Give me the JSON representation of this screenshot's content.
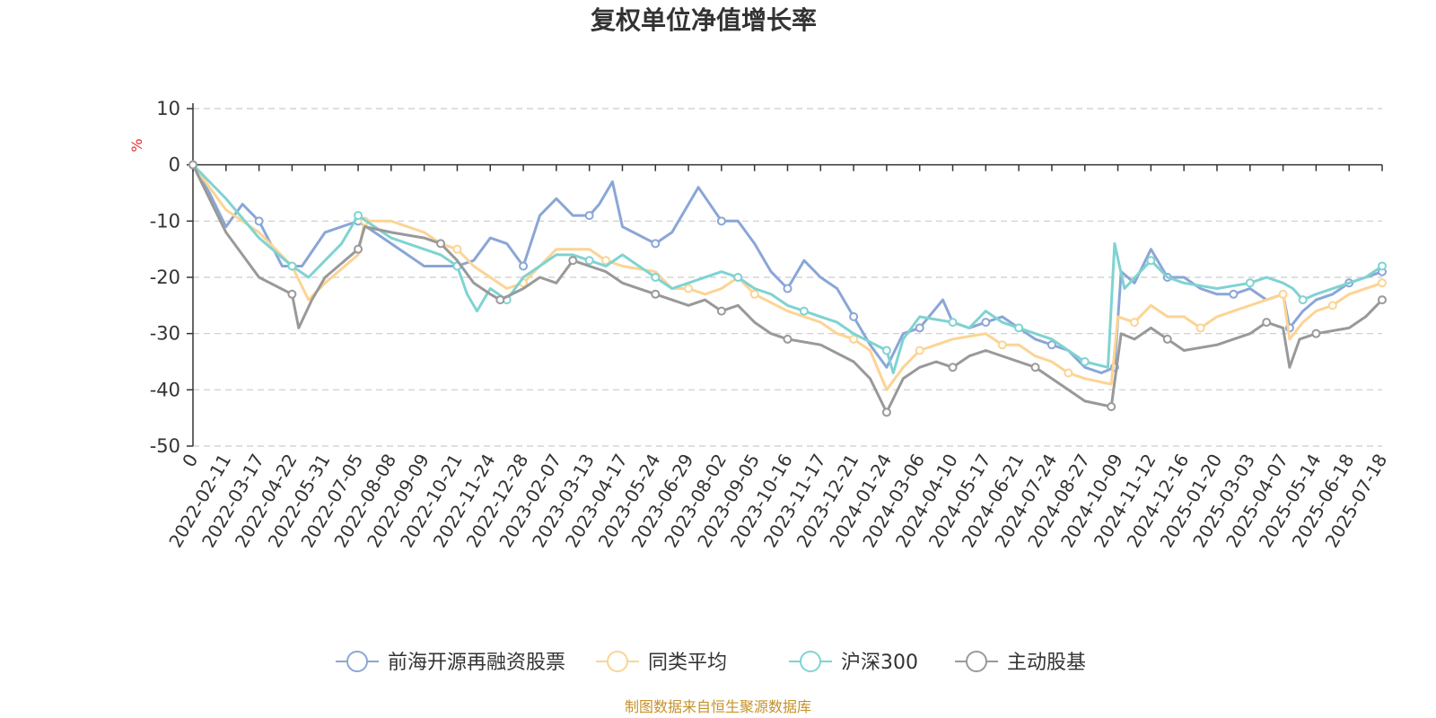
{
  "chart_data": {
    "type": "line",
    "title": "复权单位净值增长率",
    "ylabel": "%",
    "ylim": [
      -50,
      10
    ],
    "yticks": [
      10,
      0,
      -10,
      -20,
      -30,
      -40,
      -50
    ],
    "grid": true,
    "legend_position": "bottom",
    "x_tick_labels": [
      "0",
      "2022-02-11",
      "2022-03-17",
      "2022-04-22",
      "2022-05-31",
      "2022-07-05",
      "2022-08-08",
      "2022-09-09",
      "2022-10-21",
      "2022-11-24",
      "2022-12-28",
      "2023-02-07",
      "2023-03-13",
      "2023-04-17",
      "2023-05-24",
      "2023-06-29",
      "2023-08-02",
      "2023-09-05",
      "2023-10-16",
      "2023-11-17",
      "2023-12-21",
      "2024-01-24",
      "2024-03-06",
      "2024-04-10",
      "2024-05-17",
      "2024-06-21",
      "2024-07-24",
      "2024-08-27",
      "2024-10-09",
      "2024-11-12",
      "2024-12-16",
      "2025-01-20",
      "2025-03-03",
      "2025-04-07",
      "2025-05-14",
      "2025-06-18",
      "2025-07-18"
    ],
    "x_positions": [
      0,
      1,
      2,
      3,
      4,
      5,
      6,
      7,
      8,
      9,
      10,
      11,
      12,
      13,
      14,
      15,
      16,
      17,
      18,
      19,
      20,
      21,
      22,
      23,
      24,
      25,
      26,
      27,
      28,
      29,
      30,
      31,
      32,
      33,
      34,
      35,
      36
    ],
    "series": [
      {
        "name": "前海开源再融资股票",
        "color": "#8aa6d6",
        "values": [
          0,
          -5,
          -11,
          -7,
          -10,
          -18,
          -18,
          -12,
          -10,
          -12,
          -14,
          -18,
          -18,
          -17,
          -13,
          -14,
          -18,
          -9,
          -6,
          -9,
          -9,
          -7,
          -3,
          -11,
          -14,
          -12,
          -7,
          -4,
          -10,
          -10,
          -14,
          -19,
          -22,
          -17,
          -20,
          -22,
          -27,
          -32,
          -36,
          -30,
          -29,
          -24,
          -28,
          -29,
          -28,
          -27,
          -29,
          -31,
          -32,
          -33,
          -36,
          -37,
          -36,
          -19,
          -21,
          -15,
          -20,
          -20,
          -22,
          -23,
          -23,
          -22,
          -24,
          -23,
          -29,
          -26,
          -24,
          -23,
          -21,
          -20,
          -19
        ],
        "x": [
          0,
          0.5,
          1,
          1.5,
          2,
          2.7,
          3.3,
          4,
          5,
          5.5,
          6,
          7,
          8,
          8.5,
          9,
          9.5,
          10,
          10.5,
          11,
          11.5,
          12,
          12.3,
          12.7,
          13,
          14,
          14.5,
          15,
          15.3,
          16,
          16.5,
          17,
          17.5,
          18,
          18.5,
          19,
          19.5,
          20,
          20.5,
          21,
          21.5,
          22,
          22.7,
          23,
          23.5,
          24,
          24.5,
          25,
          25.5,
          26,
          26.5,
          27,
          27.5,
          27.9,
          28.1,
          28.5,
          29,
          29.5,
          30,
          30.5,
          31,
          31.5,
          32,
          32.5,
          33,
          33.2,
          33.6,
          34,
          34.5,
          35,
          35.5,
          36
        ]
      },
      {
        "name": "同类平均",
        "color": "#fcd494",
        "values": [
          0,
          -4,
          -8,
          -12,
          -18,
          -24,
          -21,
          -16,
          -10,
          -10,
          -12,
          -14,
          -15,
          -18,
          -20,
          -22,
          -21,
          -18,
          -15,
          -15,
          -17,
          -18,
          -19,
          -22,
          -22,
          -23,
          -22,
          -20,
          -23,
          -26,
          -28,
          -30,
          -31,
          -33,
          -40,
          -36,
          -33,
          -32,
          -31,
          -30,
          -32,
          -32,
          -34,
          -35,
          -37,
          -38,
          -39,
          -27,
          -28,
          -25,
          -27,
          -27,
          -29,
          -27,
          -26,
          -25,
          -23,
          -31,
          -28,
          -26,
          -25,
          -23,
          -21
        ],
        "x": [
          0,
          0.5,
          1,
          2,
          3,
          3.5,
          4,
          5,
          5.2,
          6,
          7,
          7.5,
          8,
          8.5,
          9,
          9.5,
          10,
          10.5,
          11,
          12,
          12.5,
          13,
          14,
          14.5,
          15,
          15.5,
          16,
          16.5,
          17,
          18,
          19,
          19.5,
          20,
          20.5,
          21,
          21.5,
          22,
          22.5,
          23,
          24,
          24.5,
          25,
          25.5,
          26,
          26.5,
          27,
          27.8,
          28,
          28.5,
          29,
          29.5,
          30,
          30.5,
          31,
          31.5,
          32,
          33,
          33.2,
          33.6,
          34,
          34.5,
          35,
          36
        ]
      },
      {
        "name": "沪深300",
        "color": "#7fd3d2",
        "values": [
          0,
          -3,
          -6,
          -13,
          -18,
          -20,
          -17,
          -14,
          -9,
          -13,
          -15,
          -16,
          -18,
          -23,
          -26,
          -22,
          -24,
          -20,
          -16,
          -16,
          -17,
          -18,
          -16,
          -18,
          -20,
          -22,
          -21,
          -19,
          -20,
          -22,
          -23,
          -25,
          -26,
          -27,
          -28,
          -30,
          -33,
          -37,
          -31,
          -27,
          -28,
          -29,
          -26,
          -28,
          -29,
          -30,
          -31,
          -33,
          -35,
          -36,
          -14,
          -22,
          -17,
          -20,
          -21,
          -22,
          -21,
          -20,
          -21,
          -22,
          -24,
          -23,
          -21,
          -20,
          -18
        ],
        "x": [
          0,
          0.5,
          1,
          2,
          3,
          3.5,
          4,
          4.5,
          5,
          6,
          7,
          7.5,
          8,
          8.3,
          8.6,
          9,
          9.5,
          10,
          11,
          11.5,
          12,
          12.5,
          13,
          13.5,
          14,
          14.5,
          15,
          16,
          16.5,
          17,
          17.5,
          18,
          18.5,
          19,
          19.5,
          20,
          21,
          21.2,
          21.5,
          22,
          23,
          23.5,
          24,
          24.5,
          25,
          25.5,
          26,
          26.5,
          27,
          27.7,
          27.9,
          28.2,
          29,
          29.5,
          30,
          31,
          32,
          32.5,
          33,
          33.3,
          33.6,
          34,
          35,
          35.5,
          36
        ]
      },
      {
        "name": "主动股基",
        "color": "#999999",
        "values": [
          0,
          -6,
          -12,
          -20,
          -23,
          -29,
          -24,
          -20,
          -15,
          -11,
          -12,
          -13,
          -14,
          -17,
          -21,
          -23,
          -24,
          -22,
          -20,
          -21,
          -17,
          -18,
          -19,
          -21,
          -23,
          -24,
          -25,
          -24,
          -26,
          -25,
          -28,
          -30,
          -31,
          -32,
          -35,
          -38,
          -44,
          -38,
          -36,
          -35,
          -36,
          -34,
          -33,
          -35,
          -36,
          -38,
          -40,
          -42,
          -43,
          -30,
          -31,
          -29,
          -31,
          -33,
          -32,
          -30,
          -28,
          -29,
          -36,
          -31,
          -30,
          -29,
          -27,
          -24
        ],
        "x": [
          0,
          0.5,
          1,
          2,
          3,
          3.2,
          3.6,
          4,
          5,
          5.2,
          6,
          7,
          7.5,
          8,
          8.5,
          9,
          9.3,
          10,
          10.5,
          11,
          11.5,
          12,
          12.5,
          13,
          14,
          14.5,
          15,
          15.5,
          16,
          16.5,
          17,
          17.5,
          18,
          19,
          20,
          20.5,
          21,
          21.5,
          22,
          22.5,
          23,
          23.5,
          24,
          25,
          25.5,
          26,
          26.5,
          27,
          27.8,
          28.1,
          28.5,
          29,
          29.5,
          30,
          31,
          32,
          32.5,
          33,
          33.2,
          33.5,
          34,
          35,
          35.5,
          36
        ]
      }
    ]
  },
  "footer": {
    "source": "制图数据来自恒生聚源数据库"
  }
}
